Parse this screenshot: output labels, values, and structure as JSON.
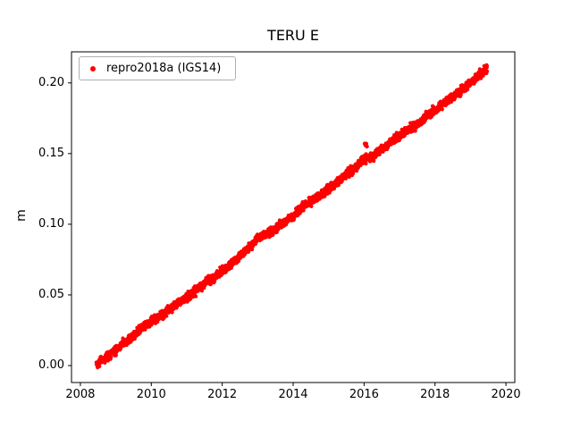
{
  "title": "TERU E",
  "ylabel": "m",
  "legend": {
    "label": "repro2018a (IGS14)",
    "marker_color": "#ff0000"
  },
  "axes": {
    "x_tick_labels": [
      "2008",
      "2010",
      "2012",
      "2014",
      "2016",
      "2018",
      "2020"
    ],
    "x_tick_values": [
      2008,
      2010,
      2012,
      2014,
      2016,
      2018,
      2020
    ],
    "y_tick_labels": [
      "0.00",
      "0.05",
      "0.10",
      "0.15",
      "0.20"
    ],
    "y_tick_values": [
      0.0,
      0.05,
      0.1,
      0.15,
      0.2
    ],
    "xlim": [
      2007.75,
      2020.25
    ],
    "ylim": [
      -0.012,
      0.222
    ],
    "grid": false,
    "legend_position": "upper left"
  },
  "chart_data": {
    "type": "scatter",
    "title": "TERU E",
    "xlabel": "",
    "ylabel": "m",
    "xlim": [
      2007.75,
      2020.25
    ],
    "ylim": [
      -0.012,
      0.222
    ],
    "series": [
      {
        "name": "repro2018a (IGS14)",
        "color": "#ff0000",
        "marker": "dot",
        "x_range": [
          2008.45,
          2019.47
        ],
        "trend_points": [
          [
            2008.45,
            0.001
          ],
          [
            2008.75,
            0.006
          ],
          [
            2009.0,
            0.011
          ],
          [
            2009.25,
            0.016
          ],
          [
            2009.5,
            0.021
          ],
          [
            2009.75,
            0.027
          ],
          [
            2010.0,
            0.031
          ],
          [
            2010.25,
            0.035
          ],
          [
            2010.5,
            0.04
          ],
          [
            2010.75,
            0.044
          ],
          [
            2011.0,
            0.048
          ],
          [
            2011.25,
            0.053
          ],
          [
            2011.5,
            0.058
          ],
          [
            2011.75,
            0.062
          ],
          [
            2012.0,
            0.067
          ],
          [
            2012.25,
            0.072
          ],
          [
            2012.5,
            0.077
          ],
          [
            2012.75,
            0.083
          ],
          [
            2013.0,
            0.09
          ],
          [
            2013.25,
            0.093
          ],
          [
            2013.5,
            0.097
          ],
          [
            2013.75,
            0.101
          ],
          [
            2014.0,
            0.106
          ],
          [
            2014.25,
            0.112
          ],
          [
            2014.5,
            0.116
          ],
          [
            2014.75,
            0.12
          ],
          [
            2015.0,
            0.125
          ],
          [
            2015.25,
            0.13
          ],
          [
            2015.5,
            0.135
          ],
          [
            2015.75,
            0.14
          ],
          [
            2016.0,
            0.146
          ],
          [
            2016.1,
            0.147
          ],
          [
            2016.25,
            0.148
          ],
          [
            2016.5,
            0.153
          ],
          [
            2016.75,
            0.158
          ],
          [
            2017.0,
            0.163
          ],
          [
            2017.25,
            0.167
          ],
          [
            2017.5,
            0.171
          ],
          [
            2017.75,
            0.176
          ],
          [
            2018.0,
            0.181
          ],
          [
            2018.25,
            0.186
          ],
          [
            2018.5,
            0.19
          ],
          [
            2018.75,
            0.195
          ],
          [
            2019.0,
            0.2
          ],
          [
            2019.25,
            0.206
          ],
          [
            2019.47,
            0.21
          ]
        ],
        "outliers": [
          [
            2016.02,
            0.157
          ],
          [
            2016.04,
            0.156
          ],
          [
            2016.06,
            0.157
          ],
          [
            2016.08,
            0.155
          ]
        ],
        "noise_sd": 0.0015,
        "n_points_rendered": 2500
      }
    ]
  }
}
